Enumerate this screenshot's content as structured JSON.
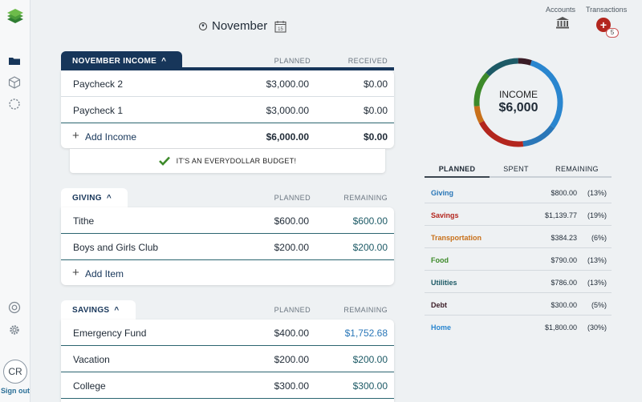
{
  "header": {
    "month": "November",
    "calendar_day": "15",
    "accounts_label": "Accounts",
    "transactions_label": "Transactions",
    "transactions_count": "5"
  },
  "sidebar": {
    "avatar_initials": "CR",
    "signout_label": "Sign out"
  },
  "income": {
    "tab_label": "NOVEMBER INCOME",
    "col1": "PLANNED",
    "col2": "RECEIVED",
    "rows": [
      {
        "name": "Paycheck 2",
        "planned": "$3,000.00",
        "received": "$0.00"
      },
      {
        "name": "Paycheck 1",
        "planned": "$3,000.00",
        "received": "$0.00"
      }
    ],
    "add_label": "Add Income",
    "total_planned": "$6,000.00",
    "total_received": "$0.00",
    "banner": "IT'S AN EVERYDOLLAR BUDGET!"
  },
  "giving": {
    "tab_label": "GIVING",
    "col1": "PLANNED",
    "col2": "REMAINING",
    "rows": [
      {
        "name": "Tithe",
        "planned": "$600.00",
        "remaining": "$600.00"
      },
      {
        "name": "Boys and Girls Club",
        "planned": "$200.00",
        "remaining": "$200.00"
      }
    ],
    "add_label": "Add Item"
  },
  "savings": {
    "tab_label": "SAVINGS",
    "col1": "PLANNED",
    "col2": "REMAINING",
    "rows": [
      {
        "name": "Emergency Fund",
        "planned": "$400.00",
        "remaining": "$1,752.68"
      },
      {
        "name": "Vacation",
        "planned": "$200.00",
        "remaining": "$200.00"
      },
      {
        "name": "College",
        "planned": "$300.00",
        "remaining": "$300.00"
      }
    ]
  },
  "summary": {
    "donut_label": "INCOME",
    "donut_amount": "$6,000",
    "tabs": [
      "PLANNED",
      "SPENT",
      "REMAINING"
    ],
    "rows": [
      {
        "name": "Giving",
        "amount": "$800.00",
        "pct": "(13%)",
        "color": "#2a77b8"
      },
      {
        "name": "Savings",
        "amount": "$1,139.77",
        "pct": "(19%)",
        "color": "#b3261e"
      },
      {
        "name": "Transportation",
        "amount": "$384.23",
        "pct": "(6%)",
        "color": "#c8701a"
      },
      {
        "name": "Food",
        "amount": "$790.00",
        "pct": "(13%)",
        "color": "#3d8a2a"
      },
      {
        "name": "Utilities",
        "amount": "$786.00",
        "pct": "(13%)",
        "color": "#1d5a66"
      },
      {
        "name": "Debt",
        "amount": "$300.00",
        "pct": "(5%)",
        "color": "#3a1c26"
      },
      {
        "name": "Home",
        "amount": "$1,800.00",
        "pct": "(30%)",
        "color": "#2a86cf"
      }
    ]
  },
  "colors": {
    "navy": "#17365a",
    "teal": "#1d5a66",
    "red_badge": "#b3261e",
    "check_green": "#3d8a2a"
  }
}
